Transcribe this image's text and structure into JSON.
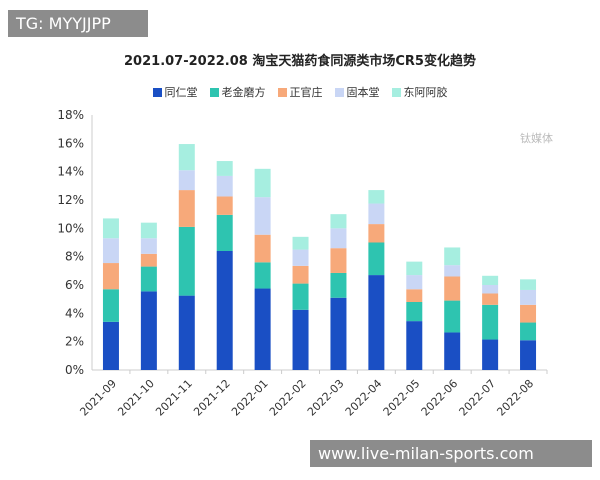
{
  "overlay": {
    "tg_label": "TG: MYYJJPP",
    "site_label": "www.live-milan-sports.com",
    "watermark": "钛媒体"
  },
  "chart_data": {
    "type": "bar",
    "stacked": true,
    "title": "2021.07-2022.08 淘宝天猫药食同源类市场CR5变化趋势",
    "xlabel": "",
    "ylabel": "",
    "ylim": [
      0,
      18
    ],
    "yticks": [
      "0%",
      "2%",
      "4%",
      "6%",
      "8%",
      "10%",
      "12%",
      "14%",
      "16%",
      "18%"
    ],
    "grid": false,
    "legend": "top",
    "categories": [
      "2021-09",
      "2021-10",
      "2021-11",
      "2021-12",
      "2022-01",
      "2022-02",
      "2022-03",
      "2022-04",
      "2022-05",
      "2022-06",
      "2022-07",
      "2022-08"
    ],
    "series": [
      {
        "name": "同仁堂",
        "color": "#1a4fc4",
        "values": [
          3.4,
          5.55,
          5.25,
          8.4,
          5.75,
          4.25,
          5.1,
          6.7,
          3.45,
          2.65,
          2.15,
          2.1
        ]
      },
      {
        "name": "老金磨方",
        "color": "#2ec4b0",
        "values": [
          2.3,
          1.75,
          4.85,
          2.55,
          1.85,
          1.85,
          1.75,
          2.3,
          1.35,
          2.25,
          2.45,
          1.25
        ]
      },
      {
        "name": "正官庄",
        "color": "#f7a97a",
        "values": [
          1.85,
          0.9,
          2.6,
          1.3,
          1.95,
          1.25,
          1.75,
          1.3,
          0.9,
          1.7,
          0.8,
          1.25
        ]
      },
      {
        "name": "固本堂",
        "color": "#c9d6f5",
        "values": [
          1.75,
          1.1,
          1.4,
          1.45,
          2.65,
          1.15,
          1.4,
          1.45,
          1.0,
          0.8,
          0.6,
          1.05
        ]
      },
      {
        "name": "东阿阿胶",
        "color": "#a6eee0",
        "values": [
          1.4,
          1.1,
          1.85,
          1.05,
          2.0,
          0.9,
          1.0,
          0.95,
          0.95,
          1.25,
          0.65,
          0.75
        ]
      }
    ]
  }
}
